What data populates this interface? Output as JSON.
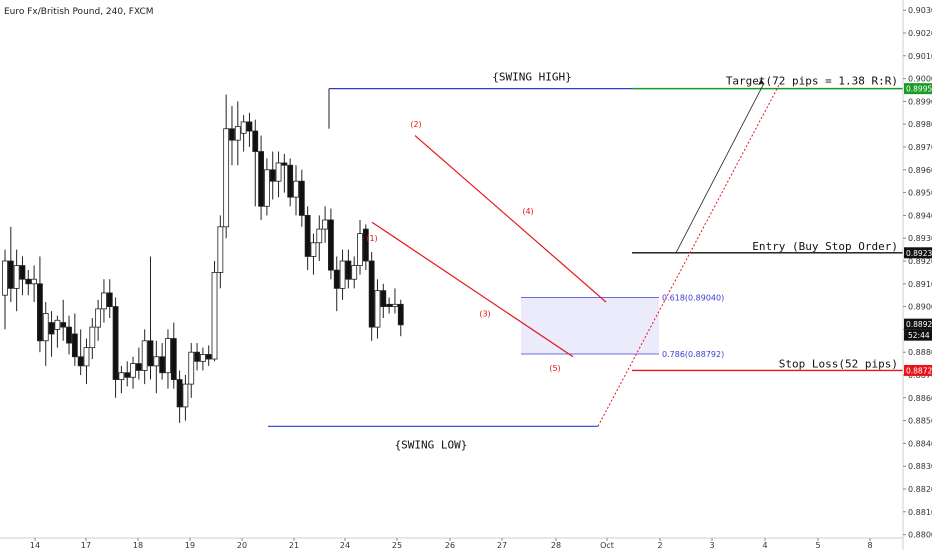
{
  "chart_data": {
    "type": "candlestick",
    "title": "Euro Fx/British Pound, 240, FXCM",
    "ylim": [
      0.88,
      0.903
    ],
    "x_ticks": [
      "14",
      "17",
      "18",
      "19",
      "20",
      "21",
      "24",
      "25",
      "26",
      "27",
      "28",
      "Oct",
      "2",
      "3",
      "4",
      "5",
      "8"
    ],
    "y_ticks": [
      "0.90300",
      "0.90200",
      "0.90100",
      "0.90000",
      "0.89900",
      "0.89800",
      "0.89700",
      "0.89600",
      "0.89500",
      "0.89400",
      "0.89300",
      "0.89200",
      "0.89100",
      "0.89000",
      "0.88900",
      "0.88800",
      "0.88700",
      "0.88600",
      "0.88500",
      "0.88400",
      "0.88300",
      "0.88200",
      "0.88100",
      "0.88000"
    ],
    "candles": [
      {
        "t": 0.0,
        "o": 0.8905,
        "h": 0.8925,
        "l": 0.889,
        "c": 0.892
      },
      {
        "t": 0.4,
        "o": 0.892,
        "h": 0.8935,
        "l": 0.8902,
        "c": 0.8908
      },
      {
        "t": 0.8,
        "o": 0.8908,
        "h": 0.8925,
        "l": 0.8898,
        "c": 0.8918
      },
      {
        "t": 1.2,
        "o": 0.8918,
        "h": 0.8922,
        "l": 0.8905,
        "c": 0.8912
      },
      {
        "t": 1.6,
        "o": 0.8912,
        "h": 0.8916,
        "l": 0.8905,
        "c": 0.891
      },
      {
        "t": 2.0,
        "o": 0.891,
        "h": 0.8918,
        "l": 0.8902,
        "c": 0.8912
      },
      {
        "t": 2.4,
        "o": 0.891,
        "h": 0.8922,
        "l": 0.888,
        "c": 0.8885
      },
      {
        "t": 2.8,
        "o": 0.8885,
        "h": 0.8902,
        "l": 0.8874,
        "c": 0.8897
      },
      {
        "t": 3.2,
        "o": 0.8893,
        "h": 0.8898,
        "l": 0.8878,
        "c": 0.8888
      },
      {
        "t": 3.6,
        "o": 0.889,
        "h": 0.8896,
        "l": 0.8882,
        "c": 0.8894
      },
      {
        "t": 4.0,
        "o": 0.8893,
        "h": 0.8903,
        "l": 0.8885,
        "c": 0.8891
      },
      {
        "t": 4.4,
        "o": 0.8891,
        "h": 0.8896,
        "l": 0.8879,
        "c": 0.8884
      },
      {
        "t": 4.8,
        "o": 0.8888,
        "h": 0.8897,
        "l": 0.8874,
        "c": 0.8878
      },
      {
        "t": 5.2,
        "o": 0.8878,
        "h": 0.889,
        "l": 0.887,
        "c": 0.8874
      },
      {
        "t": 5.6,
        "o": 0.8874,
        "h": 0.8886,
        "l": 0.8866,
        "c": 0.8882
      },
      {
        "t": 6.0,
        "o": 0.8882,
        "h": 0.8895,
        "l": 0.8877,
        "c": 0.8891
      },
      {
        "t": 6.4,
        "o": 0.8891,
        "h": 0.8903,
        "l": 0.8885,
        "c": 0.8899
      },
      {
        "t": 6.8,
        "o": 0.8899,
        "h": 0.8912,
        "l": 0.8893,
        "c": 0.8906
      },
      {
        "t": 7.2,
        "o": 0.8906,
        "h": 0.8912,
        "l": 0.8895,
        "c": 0.89
      },
      {
        "t": 7.6,
        "o": 0.89,
        "h": 0.8904,
        "l": 0.886,
        "c": 0.8868
      },
      {
        "t": 8.0,
        "o": 0.8868,
        "h": 0.8874,
        "l": 0.8862,
        "c": 0.8871
      },
      {
        "t": 8.4,
        "o": 0.8871,
        "h": 0.8876,
        "l": 0.8865,
        "c": 0.8869
      },
      {
        "t": 8.8,
        "o": 0.8869,
        "h": 0.8878,
        "l": 0.8864,
        "c": 0.8875
      },
      {
        "t": 9.2,
        "o": 0.8875,
        "h": 0.8882,
        "l": 0.8868,
        "c": 0.8872
      },
      {
        "t": 9.6,
        "o": 0.8872,
        "h": 0.889,
        "l": 0.8866,
        "c": 0.8885
      },
      {
        "t": 10.0,
        "o": 0.8885,
        "h": 0.8922,
        "l": 0.8868,
        "c": 0.8874
      },
      {
        "t": 10.4,
        "o": 0.8874,
        "h": 0.8885,
        "l": 0.8862,
        "c": 0.8878
      },
      {
        "t": 10.8,
        "o": 0.8878,
        "h": 0.8884,
        "l": 0.8868,
        "c": 0.8871
      },
      {
        "t": 11.2,
        "o": 0.8871,
        "h": 0.889,
        "l": 0.8864,
        "c": 0.8886
      },
      {
        "t": 11.6,
        "o": 0.8886,
        "h": 0.8893,
        "l": 0.8864,
        "c": 0.8868
      },
      {
        "t": 12.0,
        "o": 0.8868,
        "h": 0.8872,
        "l": 0.8849,
        "c": 0.8856
      },
      {
        "t": 12.4,
        "o": 0.8856,
        "h": 0.887,
        "l": 0.885,
        "c": 0.8866
      },
      {
        "t": 12.8,
        "o": 0.8866,
        "h": 0.8884,
        "l": 0.886,
        "c": 0.888
      },
      {
        "t": 13.2,
        "o": 0.888,
        "h": 0.8884,
        "l": 0.8872,
        "c": 0.8876
      },
      {
        "t": 13.6,
        "o": 0.8876,
        "h": 0.8882,
        "l": 0.8872,
        "c": 0.8879
      },
      {
        "t": 14.0,
        "o": 0.8879,
        "h": 0.8883,
        "l": 0.8874,
        "c": 0.8877
      },
      {
        "t": 14.4,
        "o": 0.8877,
        "h": 0.892,
        "l": 0.8876,
        "c": 0.8915
      },
      {
        "t": 14.8,
        "o": 0.8915,
        "h": 0.894,
        "l": 0.8908,
        "c": 0.8935
      },
      {
        "t": 15.2,
        "o": 0.8935,
        "h": 0.8993,
        "l": 0.893,
        "c": 0.8978
      },
      {
        "t": 15.6,
        "o": 0.8978,
        "h": 0.8988,
        "l": 0.8962,
        "c": 0.8973
      },
      {
        "t": 16.0,
        "o": 0.8973,
        "h": 0.899,
        "l": 0.8962,
        "c": 0.8979
      },
      {
        "t": 16.4,
        "o": 0.8976,
        "h": 0.8984,
        "l": 0.8968,
        "c": 0.8981
      },
      {
        "t": 16.8,
        "o": 0.8981,
        "h": 0.8985,
        "l": 0.897,
        "c": 0.8977
      },
      {
        "t": 17.2,
        "o": 0.8977,
        "h": 0.8982,
        "l": 0.8944,
        "c": 0.8968
      },
      {
        "t": 17.6,
        "o": 0.8968,
        "h": 0.8975,
        "l": 0.8938,
        "c": 0.8944
      },
      {
        "t": 18.0,
        "o": 0.8944,
        "h": 0.8965,
        "l": 0.894,
        "c": 0.896
      },
      {
        "t": 18.4,
        "o": 0.896,
        "h": 0.8968,
        "l": 0.8947,
        "c": 0.8955
      },
      {
        "t": 18.8,
        "o": 0.8955,
        "h": 0.8968,
        "l": 0.8948,
        "c": 0.8963
      },
      {
        "t": 19.2,
        "o": 0.8963,
        "h": 0.8967,
        "l": 0.895,
        "c": 0.8962
      },
      {
        "t": 19.6,
        "o": 0.8962,
        "h": 0.8965,
        "l": 0.8944,
        "c": 0.8948
      },
      {
        "t": 20.0,
        "o": 0.8948,
        "h": 0.8962,
        "l": 0.894,
        "c": 0.8955
      },
      {
        "t": 20.4,
        "o": 0.8955,
        "h": 0.896,
        "l": 0.8935,
        "c": 0.894
      },
      {
        "t": 20.8,
        "o": 0.894,
        "h": 0.8944,
        "l": 0.8916,
        "c": 0.8922
      },
      {
        "t": 21.2,
        "o": 0.8922,
        "h": 0.8932,
        "l": 0.8914,
        "c": 0.8928
      },
      {
        "t": 21.6,
        "o": 0.8928,
        "h": 0.894,
        "l": 0.892,
        "c": 0.8934
      },
      {
        "t": 22.0,
        "o": 0.8934,
        "h": 0.8944,
        "l": 0.8928,
        "c": 0.8938
      },
      {
        "t": 22.4,
        "o": 0.8938,
        "h": 0.8943,
        "l": 0.8912,
        "c": 0.8916
      },
      {
        "t": 22.8,
        "o": 0.8916,
        "h": 0.8922,
        "l": 0.8898,
        "c": 0.8908
      },
      {
        "t": 23.2,
        "o": 0.8908,
        "h": 0.8925,
        "l": 0.8903,
        "c": 0.892
      },
      {
        "t": 23.6,
        "o": 0.892,
        "h": 0.8925,
        "l": 0.8908,
        "c": 0.8912
      },
      {
        "t": 24.0,
        "o": 0.8912,
        "h": 0.8922,
        "l": 0.8908,
        "c": 0.8918
      },
      {
        "t": 24.4,
        "o": 0.8918,
        "h": 0.8938,
        "l": 0.8914,
        "c": 0.8932
      },
      {
        "t": 24.8,
        "o": 0.8934,
        "h": 0.8936,
        "l": 0.8916,
        "c": 0.892
      },
      {
        "t": 25.2,
        "o": 0.892,
        "h": 0.8924,
        "l": 0.8885,
        "c": 0.8891
      },
      {
        "t": 25.6,
        "o": 0.8891,
        "h": 0.8912,
        "l": 0.8886,
        "c": 0.8907
      },
      {
        "t": 26.0,
        "o": 0.8907,
        "h": 0.891,
        "l": 0.8895,
        "c": 0.89
      },
      {
        "t": 26.4,
        "o": 0.8901,
        "h": 0.8904,
        "l": 0.8897,
        "c": 0.89
      },
      {
        "t": 26.8,
        "o": 0.89,
        "h": 0.8908,
        "l": 0.8897,
        "c": 0.8901
      },
      {
        "t": 27.2,
        "o": 0.8901,
        "h": 0.8903,
        "l": 0.8887,
        "c": 0.8892
      }
    ],
    "levels": [
      {
        "name": "swing_high",
        "value": 0.89956,
        "color": "#2a3bd6"
      },
      {
        "name": "target",
        "value": 0.89956,
        "color": "#1a9b26"
      },
      {
        "name": "entry",
        "value": 0.89236,
        "color": "#111111"
      },
      {
        "name": "stop_loss",
        "value": 0.8872,
        "color": "#e8141a"
      },
      {
        "name": "swing_low",
        "value": 0.88475,
        "color": "#2a3bd6"
      },
      {
        "name": "current",
        "value": 0.88923,
        "color": "#111111"
      }
    ],
    "fib": [
      {
        "label": "0.618(0.89040)",
        "value": 0.8904
      },
      {
        "label": "0.786(0.88792)",
        "value": 0.88792
      }
    ],
    "annotations": {
      "swing_high_label": "{SWING HIGH}",
      "swing_low_label": "{SWING LOW}",
      "target_label": "Target(72 pips = 1.38 R:R)",
      "entry_label": "Entry (Buy Stop Order)",
      "stop_label": "Stop Loss(52 pips)",
      "waves": [
        "(1)",
        "(2)",
        "(3)",
        "(4)",
        "(5)"
      ]
    },
    "price_labels": {
      "target": "0.89956",
      "entry": "0.89236",
      "stop": "0.88720",
      "current": "0.88923",
      "countdown": "52:44"
    }
  }
}
